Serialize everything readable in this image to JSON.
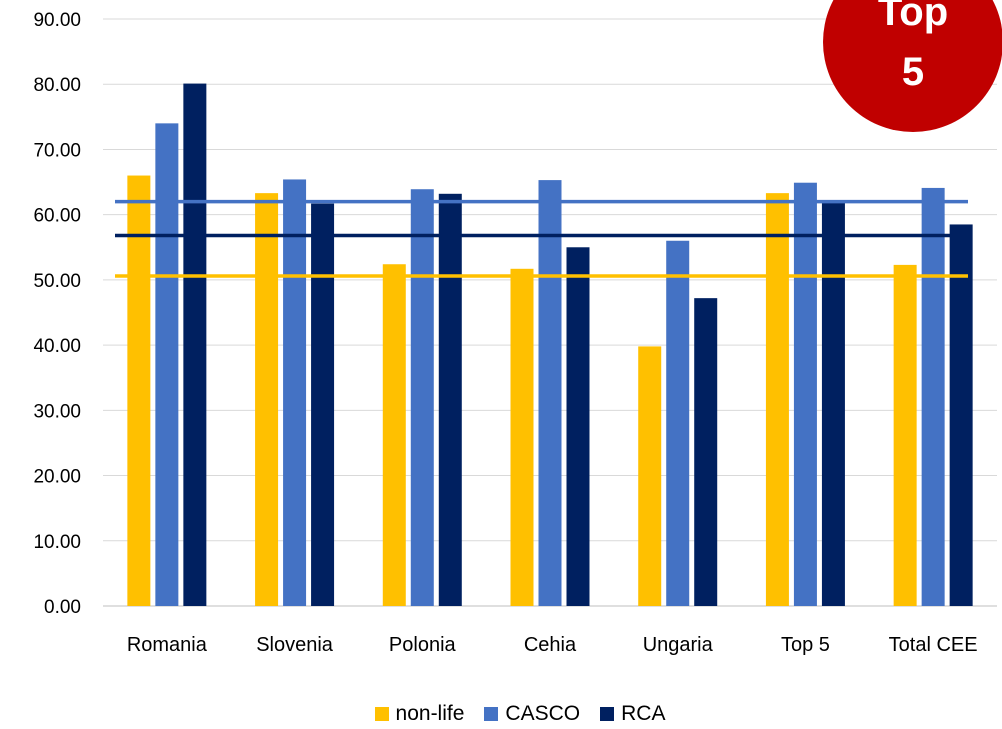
{
  "chart_data": {
    "type": "bar",
    "categories": [
      "Romania",
      "Slovenia",
      "Polonia",
      "Cehia",
      "Ungaria",
      "Top 5",
      "Total CEE"
    ],
    "series": [
      {
        "name": "non-life",
        "color": "#ffc000",
        "values": [
          66.0,
          63.3,
          52.4,
          51.7,
          39.8,
          63.3,
          52.3
        ]
      },
      {
        "name": "CASCO",
        "color": "#4472c4",
        "values": [
          74.0,
          65.4,
          63.9,
          65.3,
          56.0,
          64.9,
          64.1
        ]
      },
      {
        "name": "RCA",
        "color": "#002060",
        "values": [
          80.1,
          61.7,
          63.2,
          55.0,
          47.2,
          62.0,
          58.5
        ]
      }
    ],
    "reference_lines": [
      {
        "series": "CASCO",
        "value": 62.0,
        "color": "#4472c4"
      },
      {
        "series": "RCA",
        "value": 56.8,
        "color": "#002060"
      },
      {
        "series": "non-life",
        "value": 50.6,
        "color": "#ffc000"
      }
    ],
    "yticks": [
      "0.00",
      "10.00",
      "20.00",
      "30.00",
      "40.00",
      "50.00",
      "60.00",
      "70.00",
      "80.00",
      "90.00"
    ],
    "ylim": [
      0,
      90
    ],
    "grid": true,
    "legend_position": "bottom"
  },
  "badge": {
    "line1": "Top",
    "line2": "5",
    "color": "#c00000"
  }
}
